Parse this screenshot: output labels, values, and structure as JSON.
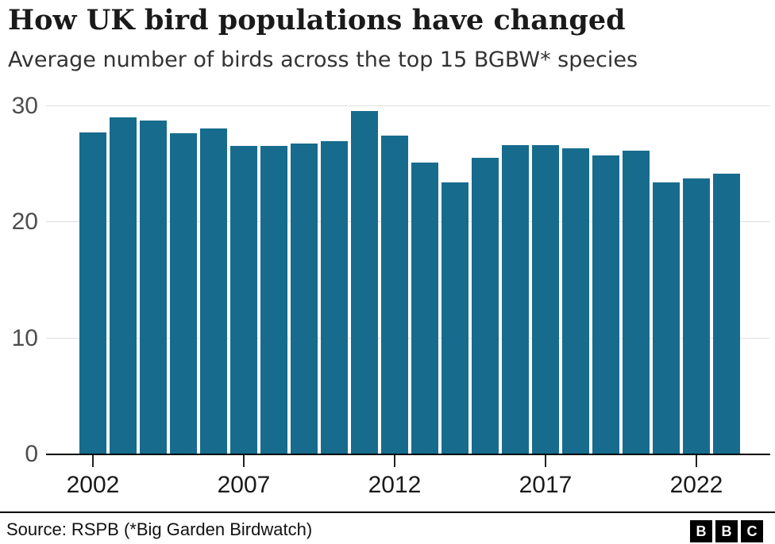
{
  "header": {
    "title": "How UK bird populations have changed",
    "subtitle": "Average number of birds across the top 15 BGBW* species"
  },
  "chart_data": {
    "type": "bar",
    "title": "How UK bird populations have changed",
    "subtitle": "Average number of birds across the top 15 BGBW* species",
    "x": [
      2002,
      2003,
      2004,
      2005,
      2006,
      2007,
      2008,
      2009,
      2010,
      2011,
      2012,
      2013,
      2014,
      2015,
      2016,
      2017,
      2018,
      2019,
      2020,
      2021,
      2022,
      2023
    ],
    "values": [
      27.7,
      29.0,
      28.7,
      27.6,
      28.0,
      26.5,
      26.5,
      26.7,
      26.9,
      29.5,
      27.4,
      25.1,
      23.4,
      25.5,
      26.6,
      26.6,
      26.3,
      25.7,
      26.1,
      23.4,
      23.7,
      24.1
    ],
    "xlabel": "",
    "ylabel": "",
    "ylim": [
      0,
      30
    ],
    "yticks": [
      0,
      10,
      20,
      30
    ],
    "xticks": [
      2002,
      2007,
      2012,
      2017,
      2022
    ],
    "grid": "horizontal",
    "legend": "none",
    "bar_color": "#176C8E"
  },
  "footer": {
    "source": "Source: RSPB (*Big Garden Birdwatch)",
    "logo_letters": [
      "B",
      "B",
      "C"
    ]
  },
  "colors": {
    "bar": "#176C8E",
    "gridline": "#e0e0e0",
    "baseline": "#000000",
    "ytick_label": "#4d4d4d",
    "xtick_label": "#1a1a1a"
  }
}
